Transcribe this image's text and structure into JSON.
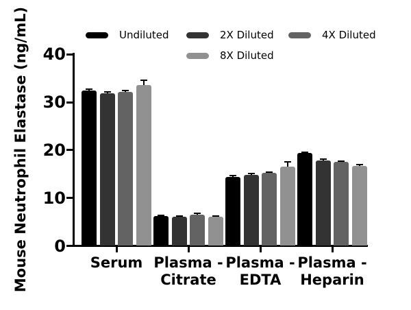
{
  "chart_data": {
    "type": "bar",
    "title": "",
    "xlabel": "",
    "ylabel": "Mouse Neutrophil Elastase (ng/mL)",
    "ylim": [
      0,
      40
    ],
    "yticks": [
      0,
      10,
      20,
      30,
      40
    ],
    "grid": false,
    "legend_position": "top",
    "categories": [
      "Serum",
      "Plasma - Citrate",
      "Plasma - EDTA",
      "Plasma - Heparin"
    ],
    "series": [
      {
        "name": "Undiluted",
        "color": "#000000",
        "values": [
          32.5,
          6.2,
          14.4,
          19.4
        ],
        "errors": [
          0.2,
          0.15,
          0.3,
          0.2
        ]
      },
      {
        "name": "2X Diluted",
        "color": "#333333",
        "values": [
          31.9,
          6.1,
          14.8,
          17.8
        ],
        "errors": [
          0.25,
          0.2,
          0.3,
          0.3
        ]
      },
      {
        "name": "4X Diluted",
        "color": "#636363",
        "values": [
          32.2,
          6.5,
          15.2,
          17.6
        ],
        "errors": [
          0.2,
          0.3,
          0.25,
          0.15
        ]
      },
      {
        "name": "8X Diluted",
        "color": "#919191",
        "values": [
          33.6,
          6.1,
          16.6,
          16.7
        ],
        "errors": [
          1.0,
          0.2,
          0.9,
          0.25
        ]
      }
    ],
    "error_bar_color": "#000000",
    "axis_color": "#000000"
  }
}
